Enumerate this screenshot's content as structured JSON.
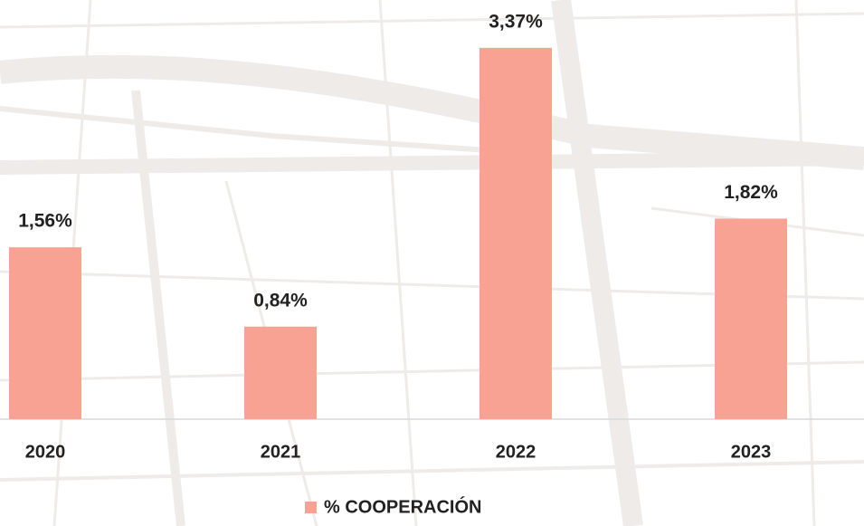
{
  "chart_data": {
    "type": "bar",
    "categories": [
      "2020",
      "2021",
      "2022",
      "2023"
    ],
    "series": [
      {
        "name": "% COOPERACIÓN",
        "color": "#f8a294",
        "values": [
          1.56,
          0.84,
          3.37,
          1.82
        ],
        "value_labels": [
          "1,56%",
          "0,84%",
          "3,37%",
          "1,82%"
        ]
      }
    ]
  }
}
